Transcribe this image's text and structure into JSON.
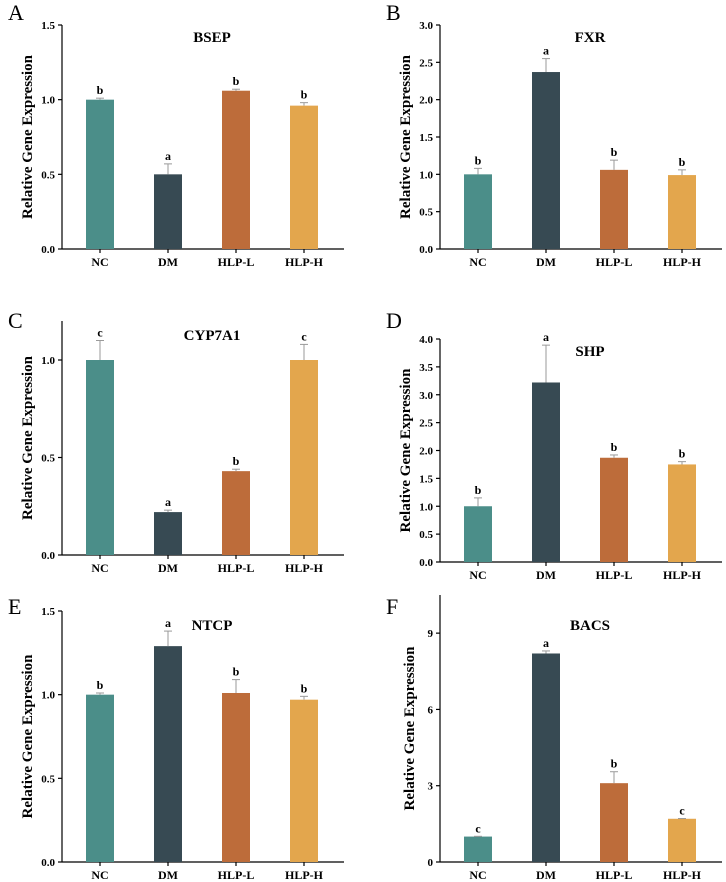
{
  "colors": {
    "NC": "#4b8e89",
    "DM": "#374a53",
    "HLP-L": "#bd6c3a",
    "HLP-H": "#e3a64d",
    "error_bar": "#9a9a9a",
    "axis": "#000000"
  },
  "chart_data": [
    {
      "type": "bar",
      "panel_label": "A",
      "title": "BSEP",
      "xlabel": "",
      "ylabel": "Relative Gene Expression",
      "categories": [
        "NC",
        "DM",
        "HLP-L",
        "HLP-H"
      ],
      "values": [
        1.0,
        0.5,
        1.06,
        0.96
      ],
      "errors": [
        0.01,
        0.07,
        0.01,
        0.02
      ],
      "significance": [
        "b",
        "a",
        "b",
        "b"
      ],
      "ylim": [
        0,
        1.5
      ],
      "yticks": [
        "0.0",
        "0.5",
        "1.0",
        "1.5"
      ],
      "grid": false,
      "legend": "none"
    },
    {
      "type": "bar",
      "panel_label": "B",
      "title": "FXR",
      "xlabel": "",
      "ylabel": "Relative Gene Expression",
      "categories": [
        "NC",
        "DM",
        "HLP-L",
        "HLP-H"
      ],
      "values": [
        1.0,
        2.37,
        1.06,
        0.99
      ],
      "errors": [
        0.08,
        0.18,
        0.13,
        0.07
      ],
      "significance": [
        "b",
        "a",
        "b",
        "b"
      ],
      "ylim": [
        0,
        3.0
      ],
      "yticks": [
        "0.0",
        "0.5",
        "1.0",
        "1.5",
        "2.0",
        "2.5",
        "3.0"
      ],
      "grid": false,
      "legend": "none"
    },
    {
      "type": "bar",
      "panel_label": "C",
      "title": "CYP7A1",
      "xlabel": "",
      "ylabel": "Relative Gene Expression",
      "categories": [
        "NC",
        "DM",
        "HLP-L",
        "HLP-H"
      ],
      "values": [
        1.0,
        0.22,
        0.43,
        1.0
      ],
      "errors": [
        0.1,
        0.01,
        0.01,
        0.08
      ],
      "significance": [
        "c",
        "a",
        "b",
        "c"
      ],
      "ylim": [
        0,
        1.2
      ],
      "yticks": [
        "0.0",
        "0.5",
        "1.0"
      ],
      "grid": false,
      "legend": "none"
    },
    {
      "type": "bar",
      "panel_label": "D",
      "title": "SHP",
      "xlabel": "",
      "ylabel": "Relative Gene Expression",
      "categories": [
        "NC",
        "DM",
        "HLP-L",
        "HLP-H"
      ],
      "values": [
        1.0,
        3.22,
        1.87,
        1.75
      ],
      "errors": [
        0.15,
        0.67,
        0.05,
        0.05
      ],
      "significance": [
        "b",
        "a",
        "b",
        "b"
      ],
      "ylim": [
        0,
        4.0
      ],
      "yticks": [
        "0.0",
        "0.5",
        "1.0",
        "1.5",
        "2.0",
        "2.5",
        "3.0",
        "3.5",
        "4.0"
      ],
      "grid": false,
      "legend": "none"
    },
    {
      "type": "bar",
      "panel_label": "E",
      "title": "NTCP",
      "xlabel": "",
      "ylabel": "Relative Gene Expression",
      "categories": [
        "NC",
        "DM",
        "HLP-L",
        "HLP-H"
      ],
      "values": [
        1.0,
        1.29,
        1.01,
        0.97
      ],
      "errors": [
        0.01,
        0.09,
        0.08,
        0.02
      ],
      "significance": [
        "b",
        "a",
        "b",
        "b"
      ],
      "ylim": [
        0,
        1.5
      ],
      "yticks": [
        "0.0",
        "0.5",
        "1.0",
        "1.5"
      ],
      "grid": false,
      "legend": "none"
    },
    {
      "type": "bar",
      "panel_label": "F",
      "title": "BACS",
      "xlabel": "",
      "ylabel": "Relative Gene Expression",
      "categories": [
        "NC",
        "DM",
        "HLP-L",
        "HLP-H"
      ],
      "values": [
        1.0,
        8.2,
        3.1,
        1.7
      ],
      "errors": [
        0.01,
        0.1,
        0.45,
        0.01
      ],
      "significance": [
        "c",
        "a",
        "b",
        "c"
      ],
      "ylim": [
        0,
        10.5
      ],
      "yticks": [
        "0",
        "3",
        "6",
        "9"
      ],
      "grid": false,
      "legend": "none"
    }
  ]
}
